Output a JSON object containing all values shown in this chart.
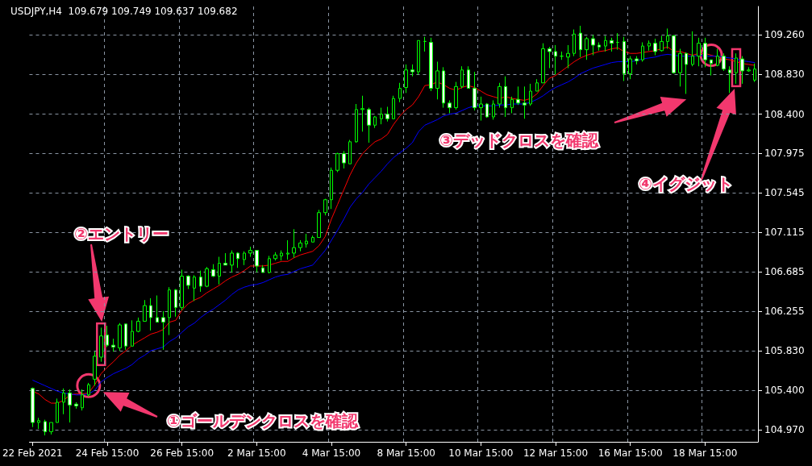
{
  "chart_data": {
    "type": "candlestick",
    "title": "USDJPY,H4  109.679 109.749 109.637 109.682",
    "categories": [
      "22 Feb 2021",
      null,
      null,
      null,
      null,
      null,
      null,
      null,
      null,
      null,
      null,
      null,
      "24 Feb 15:00",
      null,
      null,
      null,
      null,
      null,
      null,
      null,
      null,
      null,
      null,
      null,
      "26 Feb 15:00",
      null,
      null,
      null,
      null,
      null,
      null,
      null,
      null,
      null,
      null,
      null,
      "2 Mar 15:00",
      null,
      null,
      null,
      null,
      null,
      null,
      null,
      null,
      null,
      null,
      null,
      "4 Mar 15:00",
      null,
      null,
      null,
      null,
      null,
      null,
      null,
      null,
      null,
      null,
      null,
      "8 Mar 15:00",
      null,
      null,
      null,
      null,
      null,
      null,
      null,
      null,
      null,
      null,
      null,
      "10 Mar 15:00",
      null,
      null,
      null,
      null,
      null,
      null,
      null,
      null,
      null,
      null,
      null,
      "12 Mar 15:00",
      null,
      null,
      null,
      null,
      null,
      null,
      null,
      null,
      null,
      null,
      null,
      "16 Mar 15:00",
      null,
      null,
      null,
      null,
      null,
      null,
      null,
      null,
      null,
      null,
      null,
      "18 Mar 15:00",
      null,
      null,
      null,
      null,
      null,
      null,
      null,
      null
    ],
    "series": [
      {
        "type": "candlestick",
        "color": "#00ff00",
        "ohlc": [
          [
            105.42,
            105.43,
            105.0,
            105.05
          ],
          [
            105.05,
            105.1,
            104.98,
            105.07
          ],
          [
            105.06,
            105.08,
            104.91,
            104.95
          ],
          [
            104.95,
            105.05,
            104.92,
            105.05
          ],
          [
            105.05,
            105.31,
            105.05,
            105.27
          ],
          [
            105.27,
            105.42,
            105.14,
            105.37
          ],
          [
            105.37,
            105.41,
            105.05,
            105.24
          ],
          [
            105.25,
            105.27,
            105.2,
            105.23
          ],
          [
            105.21,
            105.41,
            105.18,
            105.35
          ],
          [
            105.35,
            105.48,
            105.33,
            105.46
          ],
          [
            105.52,
            105.82,
            105.45,
            105.77
          ],
          [
            105.76,
            106.08,
            105.71,
            105.99
          ],
          [
            106.0,
            106.1,
            105.87,
            105.89
          ],
          [
            105.89,
            105.96,
            105.82,
            105.87
          ],
          [
            105.86,
            106.13,
            105.83,
            106.11
          ],
          [
            106.12,
            106.12,
            105.84,
            105.88
          ],
          [
            105.88,
            106.16,
            105.88,
            106.04
          ],
          [
            106.04,
            106.19,
            106.03,
            106.15
          ],
          [
            106.15,
            106.38,
            106.15,
            106.32
          ],
          [
            106.32,
            106.4,
            106.05,
            106.19
          ],
          [
            106.19,
            106.43,
            106.14,
            106.14
          ],
          [
            106.19,
            106.26,
            105.84,
            106.14
          ],
          [
            106.19,
            106.52,
            106.0,
            106.49
          ],
          [
            106.49,
            106.5,
            106.2,
            106.3
          ],
          [
            106.3,
            106.71,
            106.27,
            106.64
          ],
          [
            106.64,
            106.65,
            106.5,
            106.54
          ],
          [
            106.51,
            106.65,
            106.37,
            106.63
          ],
          [
            106.63,
            106.7,
            106.47,
            106.53
          ],
          [
            106.53,
            106.74,
            106.52,
            106.72
          ],
          [
            106.71,
            106.77,
            106.63,
            106.64
          ],
          [
            106.64,
            106.85,
            106.55,
            106.78
          ],
          [
            106.78,
            106.89,
            106.76,
            106.76
          ],
          [
            106.76,
            106.92,
            106.68,
            106.89
          ],
          [
            106.89,
            106.9,
            106.73,
            106.83
          ],
          [
            106.82,
            106.91,
            106.76,
            106.89
          ],
          [
            106.89,
            106.96,
            106.85,
            106.92
          ],
          [
            106.92,
            106.92,
            106.68,
            106.75
          ],
          [
            106.73,
            106.76,
            106.68,
            106.68
          ],
          [
            106.68,
            106.86,
            106.67,
            106.83
          ],
          [
            106.83,
            106.9,
            106.81,
            106.87
          ],
          [
            106.86,
            106.92,
            106.81,
            106.89
          ],
          [
            106.88,
            107.03,
            106.82,
            106.89
          ],
          [
            106.89,
            107.15,
            106.84,
            106.95
          ],
          [
            106.95,
            107.03,
            106.91,
            107.0
          ],
          [
            106.99,
            107.1,
            106.95,
            107.02
          ],
          [
            107.01,
            107.08,
            107.01,
            107.06
          ],
          [
            107.06,
            107.36,
            107.06,
            107.33
          ],
          [
            107.33,
            107.48,
            107.3,
            107.47
          ],
          [
            107.47,
            107.82,
            107.37,
            107.79
          ],
          [
            107.79,
            107.98,
            107.77,
            107.97
          ],
          [
            107.97,
            108.0,
            107.81,
            107.87
          ],
          [
            107.86,
            108.12,
            107.86,
            108.1
          ],
          [
            108.1,
            108.51,
            108.09,
            108.45
          ],
          [
            108.45,
            108.6,
            108.21,
            108.46
          ],
          [
            108.45,
            108.47,
            108.09,
            108.28
          ],
          [
            108.28,
            108.38,
            108.25,
            108.37
          ],
          [
            108.35,
            108.47,
            108.29,
            108.4
          ],
          [
            108.4,
            108.48,
            108.32,
            108.35
          ],
          [
            108.35,
            108.6,
            108.35,
            108.57
          ],
          [
            108.57,
            108.74,
            108.53,
            108.68
          ],
          [
            108.69,
            108.94,
            108.63,
            108.88
          ],
          [
            108.88,
            108.94,
            108.81,
            108.86
          ],
          [
            108.86,
            109.2,
            108.83,
            109.2
          ],
          [
            109.19,
            109.24,
            109.08,
            109.19
          ],
          [
            109.18,
            109.23,
            108.65,
            108.68
          ],
          [
            108.68,
            108.97,
            108.56,
            108.87
          ],
          [
            108.87,
            108.91,
            108.47,
            108.52
          ],
          [
            108.52,
            108.55,
            108.41,
            108.47
          ],
          [
            108.47,
            108.75,
            108.45,
            108.7
          ],
          [
            108.7,
            108.92,
            108.68,
            108.88
          ],
          [
            108.88,
            108.92,
            108.68,
            108.68
          ],
          [
            108.68,
            108.86,
            108.44,
            108.47
          ],
          [
            108.47,
            108.59,
            108.33,
            108.51
          ],
          [
            108.51,
            108.52,
            108.36,
            108.37
          ],
          [
            108.37,
            108.55,
            108.34,
            108.51
          ],
          [
            108.51,
            108.74,
            108.47,
            108.7
          ],
          [
            108.7,
            108.81,
            108.37,
            108.47
          ],
          [
            108.47,
            108.59,
            108.41,
            108.56
          ],
          [
            108.56,
            108.7,
            108.5,
            108.52
          ],
          [
            108.52,
            108.7,
            108.35,
            108.5
          ],
          [
            108.51,
            108.73,
            108.49,
            108.65
          ],
          [
            108.65,
            108.78,
            108.65,
            108.74
          ],
          [
            108.74,
            109.17,
            108.74,
            109.11
          ],
          [
            109.11,
            109.13,
            108.9,
            109.08
          ],
          [
            109.08,
            109.15,
            108.83,
            109.03
          ],
          [
            109.03,
            109.08,
            108.99,
            109.03
          ],
          [
            109.02,
            109.15,
            108.9,
            109.06
          ],
          [
            109.06,
            109.32,
            109.03,
            109.27
          ],
          [
            109.28,
            109.36,
            109.02,
            109.1
          ],
          [
            109.1,
            109.24,
            108.99,
            109.22
          ],
          [
            109.22,
            109.26,
            109.04,
            109.15
          ],
          [
            109.15,
            109.18,
            109.09,
            109.13
          ],
          [
            109.14,
            109.25,
            109.08,
            109.2
          ],
          [
            109.2,
            109.23,
            109.08,
            109.17
          ],
          [
            109.18,
            109.28,
            109.1,
            109.18
          ],
          [
            109.19,
            109.24,
            108.76,
            108.84
          ],
          [
            108.84,
            109.03,
            108.78,
            109.0
          ],
          [
            109.0,
            109.03,
            108.94,
            108.98
          ],
          [
            108.99,
            109.18,
            108.97,
            109.14
          ],
          [
            109.14,
            109.2,
            109.09,
            109.17
          ],
          [
            109.17,
            109.22,
            109.04,
            109.08
          ],
          [
            109.09,
            109.25,
            109.08,
            109.19
          ],
          [
            109.19,
            109.33,
            109.11,
            109.25
          ],
          [
            109.25,
            109.26,
            108.84,
            108.85
          ],
          [
            108.85,
            109.11,
            108.7,
            109.06
          ],
          [
            109.06,
            109.07,
            108.62,
            108.94
          ],
          [
            108.94,
            109.3,
            108.92,
            109.03
          ],
          [
            109.03,
            109.23,
            108.92,
            109.17
          ],
          [
            109.17,
            109.23,
            108.91,
            108.99
          ],
          [
            108.99,
            108.99,
            108.82,
            108.95
          ],
          [
            108.93,
            109.11,
            108.92,
            109.03
          ],
          [
            109.03,
            109.06,
            108.87,
            108.89
          ],
          [
            108.88,
            108.92,
            108.63,
            108.85
          ],
          [
            108.85,
            109.06,
            108.73,
            109.01
          ],
          [
            109.0,
            109.03,
            108.73,
            108.87
          ],
          [
            108.87,
            108.91,
            108.86,
            108.88
          ],
          [
            108.77,
            108.95,
            108.75,
            108.89
          ]
        ]
      },
      {
        "type": "line",
        "color": "#ff0000",
        "marker": "none",
        "values": [
          105.39,
          105.36,
          105.3,
          105.26,
          105.26,
          105.29,
          105.35,
          105.36,
          105.36,
          105.37,
          105.46,
          105.58,
          105.65,
          105.71,
          105.78,
          105.83,
          105.89,
          105.93,
          105.97,
          106.01,
          106.03,
          106.06,
          106.14,
          106.16,
          106.27,
          106.34,
          106.38,
          106.41,
          106.46,
          106.5,
          106.54,
          106.59,
          106.63,
          106.66,
          106.7,
          106.75,
          106.75,
          106.75,
          106.76,
          106.78,
          106.8,
          106.8,
          106.84,
          106.87,
          106.89,
          106.91,
          106.97,
          107.07,
          107.26,
          107.42,
          107.58,
          107.74,
          107.87,
          107.97,
          108.04,
          108.1,
          108.13,
          108.18,
          108.29,
          108.38,
          108.45,
          108.5,
          108.59,
          108.71,
          108.72,
          108.75,
          108.72,
          108.68,
          108.66,
          108.69,
          108.71,
          108.69,
          108.65,
          108.61,
          108.59,
          108.57,
          108.59,
          108.57,
          108.56,
          108.55,
          108.57,
          108.62,
          108.71,
          108.79,
          108.82,
          108.87,
          108.92,
          108.97,
          109.01,
          109.04,
          109.06,
          109.08,
          109.09,
          109.11,
          109.12,
          109.08,
          109.06,
          109.06,
          109.07,
          109.08,
          109.09,
          109.11,
          109.13,
          109.08,
          109.08,
          109.06,
          109.04,
          109.06,
          109.06,
          109.04,
          109.02,
          109.0,
          108.99,
          108.97,
          108.95,
          108.94,
          108.93
        ]
      },
      {
        "type": "line",
        "color": "#0000ff",
        "marker": "none",
        "values": [
          105.51,
          105.48,
          105.45,
          105.42,
          105.39,
          105.37,
          105.36,
          105.35,
          105.35,
          105.36,
          105.4,
          105.49,
          105.54,
          105.58,
          105.61,
          105.64,
          105.68,
          105.74,
          105.78,
          105.83,
          105.85,
          105.87,
          105.93,
          105.97,
          106.03,
          106.09,
          106.13,
          106.19,
          106.24,
          106.28,
          106.33,
          106.38,
          106.44,
          106.49,
          106.52,
          106.54,
          106.55,
          106.57,
          106.6,
          106.63,
          106.65,
          106.66,
          106.69,
          106.72,
          106.74,
          106.76,
          106.84,
          106.92,
          107.03,
          107.14,
          107.26,
          107.39,
          107.48,
          107.55,
          107.64,
          107.71,
          107.78,
          107.86,
          107.93,
          107.98,
          108.03,
          108.09,
          108.21,
          108.28,
          108.31,
          108.34,
          108.38,
          108.4,
          108.41,
          108.44,
          108.47,
          108.49,
          108.49,
          108.49,
          108.49,
          108.5,
          108.5,
          108.51,
          108.51,
          108.51,
          108.53,
          108.56,
          108.6,
          108.65,
          108.69,
          108.72,
          108.75,
          108.79,
          108.84,
          108.87,
          108.9,
          108.92,
          108.94,
          108.96,
          108.97,
          108.97,
          108.97,
          108.98,
          109.0,
          109.01,
          109.02,
          109.04,
          109.05,
          109.04,
          109.03,
          109.03,
          109.03,
          109.04,
          109.03,
          109.03,
          109.03,
          109.02,
          109.01,
          109.0,
          108.98,
          108.97,
          108.96
        ]
      }
    ],
    "ylim": [
      104.84,
      109.57
    ],
    "yticks": [
      {
        "value": 104.97,
        "label": "104.970"
      },
      {
        "value": 105.4,
        "label": "105.400"
      },
      {
        "value": 105.83,
        "label": "105.830"
      },
      106.255,
      106.685,
      107.115,
      107.545,
      107.975,
      {
        "value": 108.4,
        "label": "108.400"
      },
      {
        "value": 108.83,
        "label": "108.830"
      },
      {
        "value": 109.26,
        "label": "109.260"
      }
    ],
    "grid": true,
    "annotations": [
      "①ゴールデンクロスを確認",
      "②エントリー",
      "③デッドクロスを確認",
      "④イグジット"
    ]
  }
}
